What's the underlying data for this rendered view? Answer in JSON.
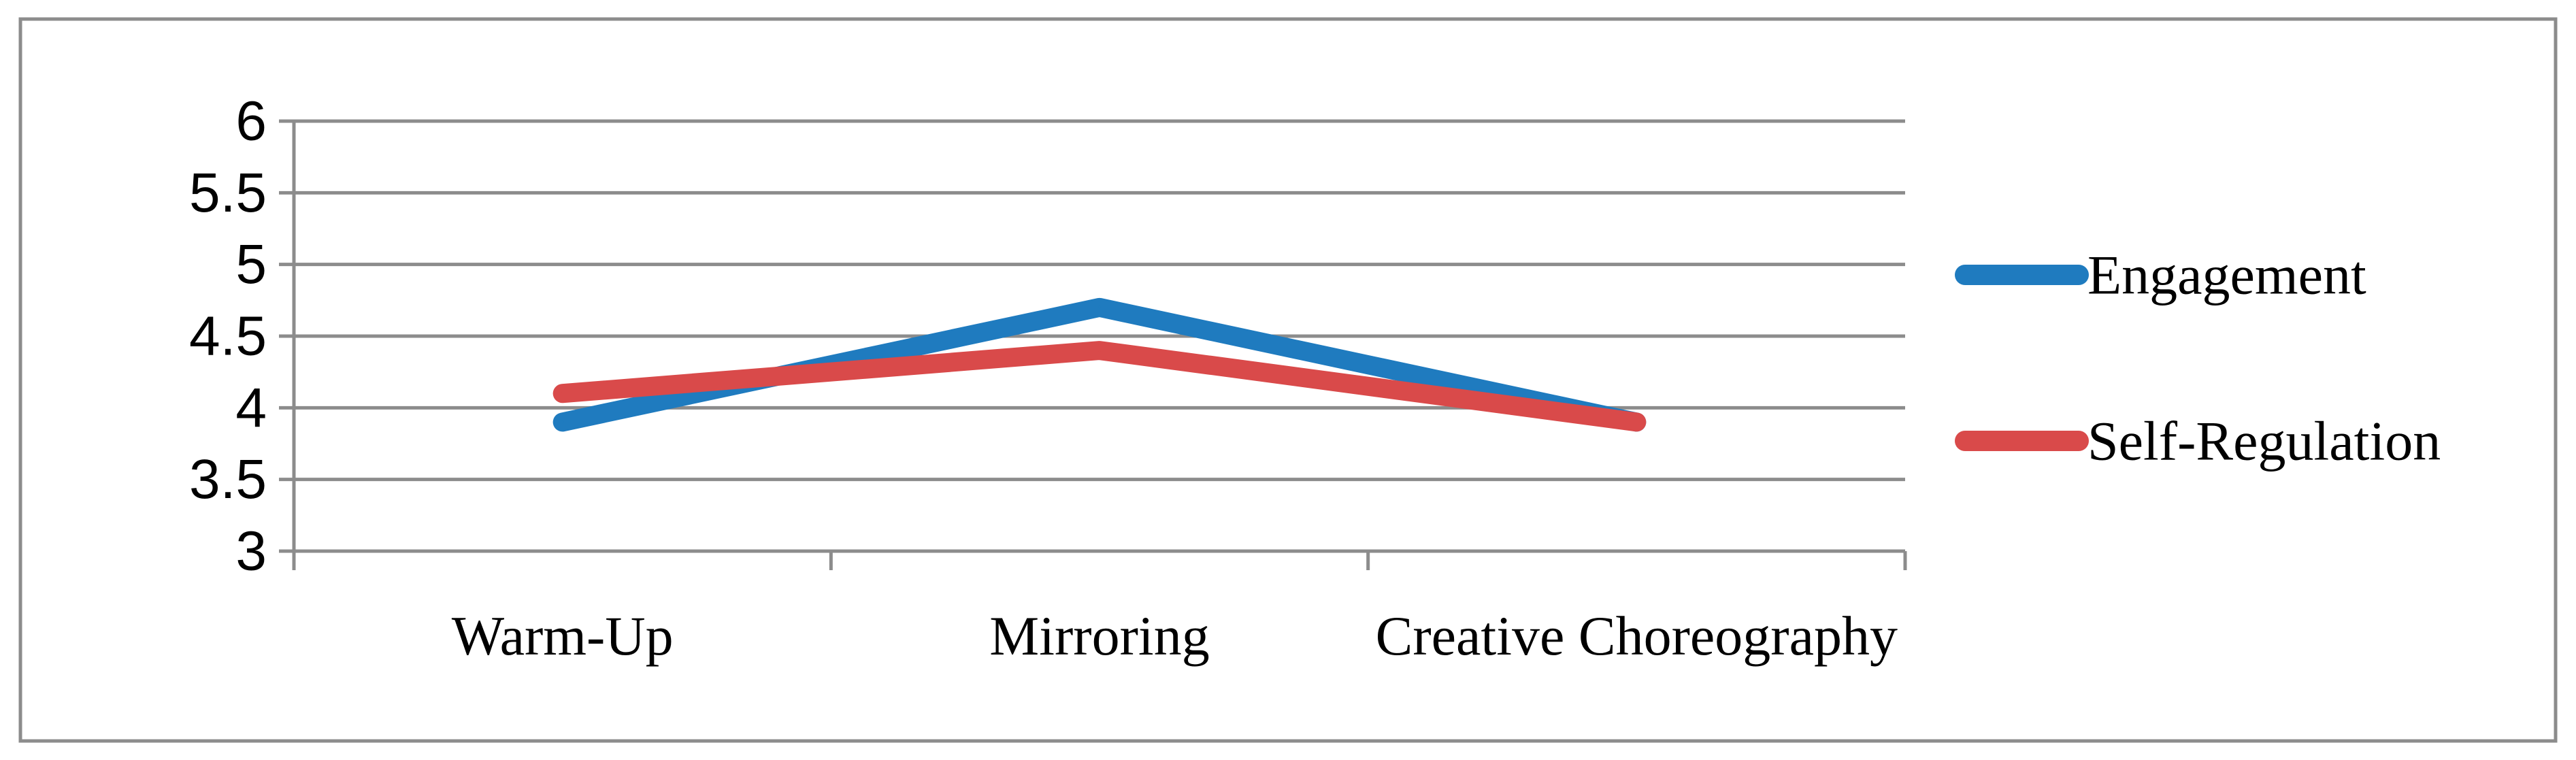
{
  "chart_data": {
    "type": "line",
    "title": "",
    "xlabel": "",
    "ylabel": "",
    "categories": [
      "Warm-Up",
      "Mirroring",
      "Creative Choreography"
    ],
    "ylim": [
      3,
      6
    ],
    "yticks": [
      "3",
      "3.5",
      "4",
      "4.5",
      "5",
      "5.5",
      "6"
    ],
    "grid": true,
    "legend_position": "right",
    "series": [
      {
        "name": "Engagement",
        "color": "#1f7bbf",
        "values": [
          3.9,
          4.7,
          3.9
        ],
        "midpoints": [
          4.3
        ]
      },
      {
        "name": "Self-Regulation",
        "color": "#d94a4a",
        "values": [
          4.1,
          4.4,
          3.9
        ]
      }
    ]
  }
}
